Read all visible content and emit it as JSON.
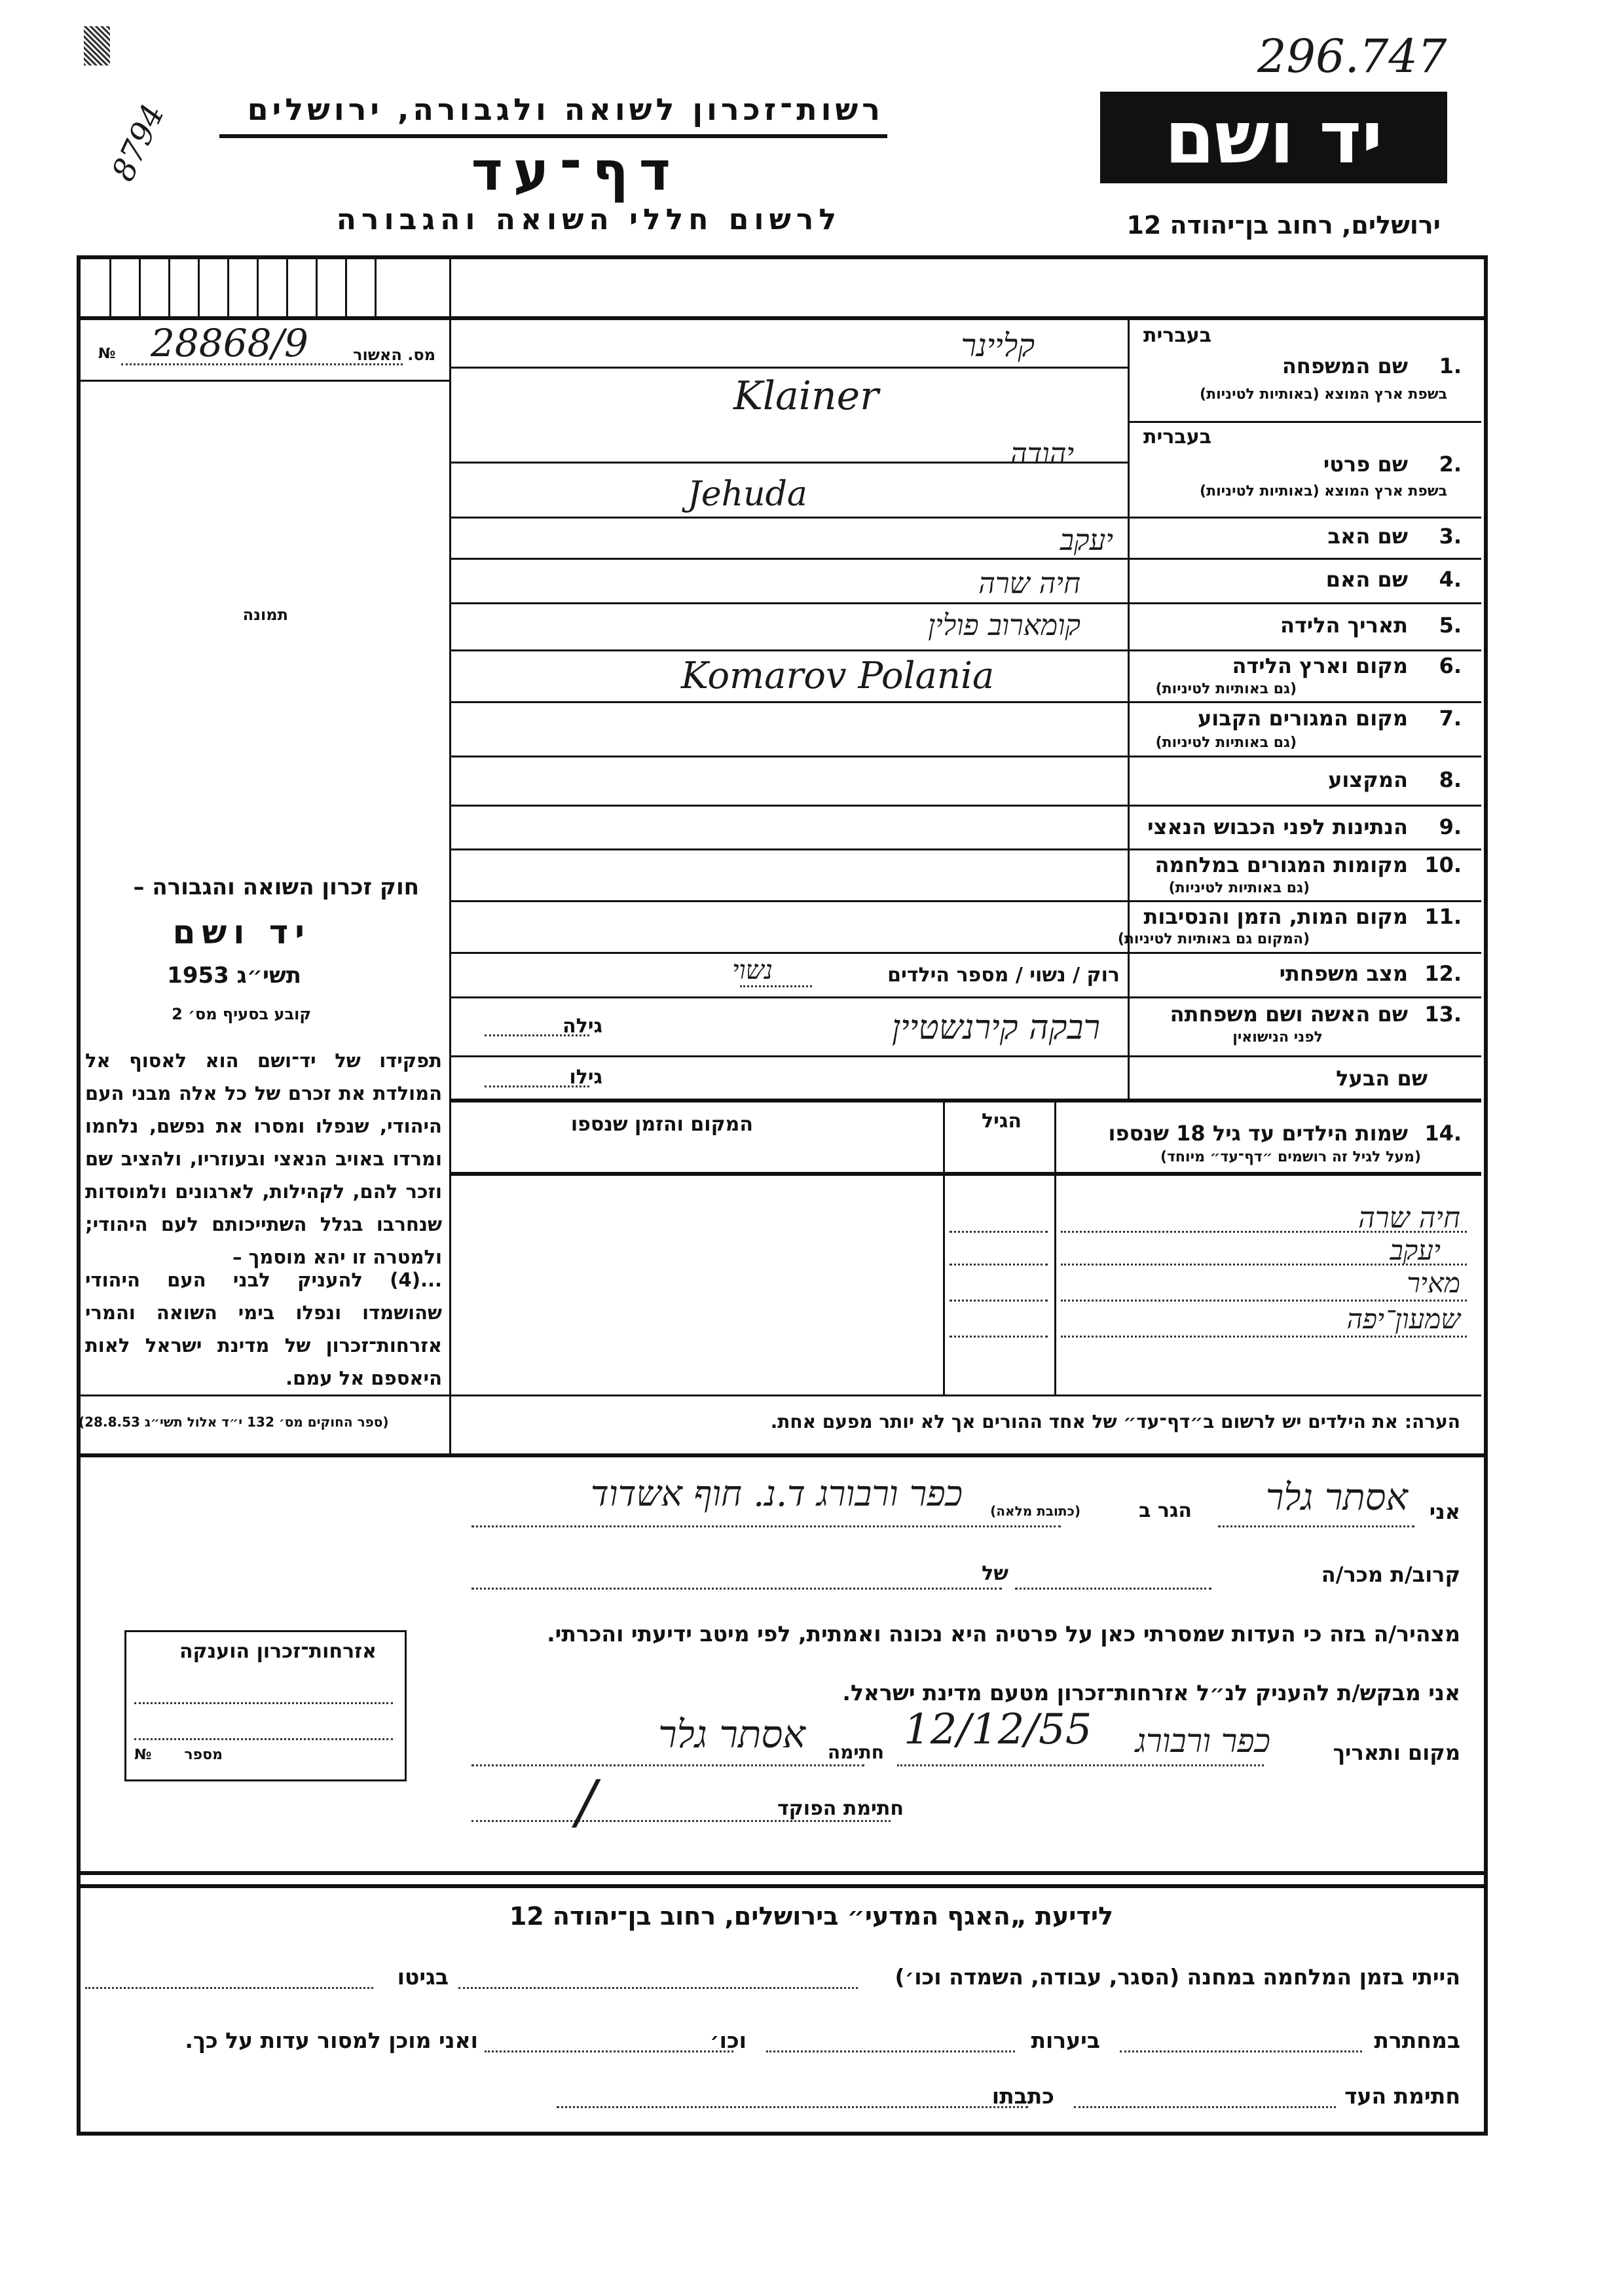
{
  "header": {
    "archive_number": "296.747",
    "margin_note": "8794",
    "logo_text": "יד ושם",
    "org_name": "רשות־זכרון לשואה ולגבורה, ירושלים",
    "form_title": "דף־עד",
    "form_subtitle": "לרשום חללי השואה והגבורה",
    "address": "ירושלים, רחוב בן־יהודה 12"
  },
  "left_panel": {
    "record_label": "מס. האשור",
    "record_value": "28868/9",
    "no_symbol": "№",
    "photo_label": "תמונה",
    "law_title": "חוק זכרון השואה והגבורה –",
    "law_name": "יד ושם",
    "law_year": "תשי״ג 1953",
    "law_clause": "קובע בסעיף מס׳ 2",
    "law_paragraph_1": "תפקידו של יד־ושם הוא לאסוף אל המולדת את זכרם של כל אלה מבני העם היהודי, שנפלו ומסרו את נפשם, נלחמו ומרדו באויב הנאצי ובעוזריו, ולהציב שם וזכר להם, לקהילות, לארגונים ולמוסדות שנחרבו בגלל השתייכותם לעם היהודי; ולמטרה זו יהא מוסמך –",
    "law_paragraph_2": "...(4) להעניק לבני העם היהודי שהושמדו ונפלו בימי השואה והמרי אזרחות־זכרון של מדינת ישראל לאות היאספם אל עמם.",
    "law_citation": "(ספר החוקים מס׳ 132 י״ד אלול תשי״ג 28.8.53)"
  },
  "fields": [
    {
      "num": "1.",
      "label": "שם המשפחה",
      "hebrew_tag": "בעברית",
      "sublabel": "בשפת ארץ המוצא (באותיות לטיניות)",
      "value_hebrew": "קליינר",
      "value_latin": "Klainer"
    },
    {
      "num": "2.",
      "label": "שם פרטי",
      "hebrew_tag": "בעברית",
      "sublabel": "בשפת ארץ המוצא (באותיות לטיניות)",
      "value_hebrew": "יהודה",
      "value_latin": "Jehuda"
    },
    {
      "num": "3.",
      "label": "שם האב",
      "value": "יעקב"
    },
    {
      "num": "4.",
      "label": "שם האם",
      "value": "חיה שרה"
    },
    {
      "num": "5.",
      "label": "תאריך הלידה",
      "value": ""
    },
    {
      "num": "6.",
      "label": "מקום וארץ הלידה",
      "sublabel": "(גם באותיות לטיניות)",
      "value_hebrew": "קומארוב פולין",
      "value_latin": "Komarov Polania"
    },
    {
      "num": "7.",
      "label": "מקום המגורים הקבוע",
      "sublabel": "(גם באותיות לטיניות)",
      "value": ""
    },
    {
      "num": "8.",
      "label": "המקצוע",
      "value": ""
    },
    {
      "num": "9.",
      "label": "הנתינות לפני הכבוש הנאצי",
      "value": ""
    },
    {
      "num": "10.",
      "label": "מקומות המגורים במלחמה",
      "sublabel": "(גם באותיות לטיניות)",
      "value": ""
    },
    {
      "num": "11.",
      "label": "מקום המות, הזמן והנסיבות",
      "sublabel": "(המקום גם באותיות לטיניות)",
      "value": ""
    },
    {
      "num": "12.",
      "label": "מצב משפחתי",
      "options": "רוק / נשוי / מספר הילדים",
      "value": "נשוי"
    },
    {
      "num": "13.",
      "label": "שם האשה ושם משפחתה",
      "sublabel": "לפני הנישואין",
      "value": "רבקה קירנשטיין",
      "age_label": "גילה"
    },
    {
      "num": "",
      "label": "שם הבעל",
      "value": "",
      "age_label": "גילו"
    }
  ],
  "children": {
    "num": "14.",
    "header": "שמות הילדים עד גיל 18 שנספו",
    "subheader": "(מעל לגיל זה רושמים ״דף־עד״ מיוחד)",
    "age_header": "הגיל",
    "place_header": "המקום והזמן שנספו",
    "names": [
      "חיה שרה",
      "יעקב",
      "מאיר",
      "שמעון־יפה"
    ]
  },
  "note": "הערה: את הילדים יש לרשום ב״דף־עד״ של אחד ההורים אך לא יותר מפעם אחת.",
  "declaration": {
    "i_label": "אני",
    "name": "אסתר גלר",
    "lives_label": "הגר ב",
    "address_hint": "(כתובת מלאה)",
    "address": "כפר ורבורג ד.נ. חוף אשדוד",
    "relative_label": "קרוב/ת מכר/ה",
    "of_label": "של",
    "declare_text": "מצהיר/ה בזה כי העדות שמסרתי כאן על פרטיה היא נכונה ואמתית, לפי מיטב ידיעתי והכרתי.",
    "request_text": "אני מבקש/ת להעניק לנ״ל אזרחות־זכרון מטעם מדינת ישראל.",
    "place_date_label": "מקום ותאריך",
    "place_value": "כפר ורבורג",
    "date_value": "12/12/55",
    "signature_label": "חתימה",
    "signature_value": "אסתר גלר",
    "officer_label": "חתימת הפוקד"
  },
  "citizenship_box": {
    "title": "אזרחות־זכרון הוענקה",
    "number_label": "מספר",
    "no_symbol": "№"
  },
  "witness": {
    "title": "לידיעת „האגף המדעי״ בירושלים, רחוב בן־יהודה 12",
    "camp_text": "הייתי בזמן המלחמה במחנה (הסגר, עבודה, השמדה וכו׳)",
    "ghetto_label": "בגיטו",
    "underground_label": "במחתרת",
    "forests_label": "ביערות",
    "etc_label": "וכו׳",
    "ready_text": "ואני מוכן למסור עדות על כך.",
    "witness_signature_label": "חתימת העד",
    "address_label": "כתבתו"
  }
}
